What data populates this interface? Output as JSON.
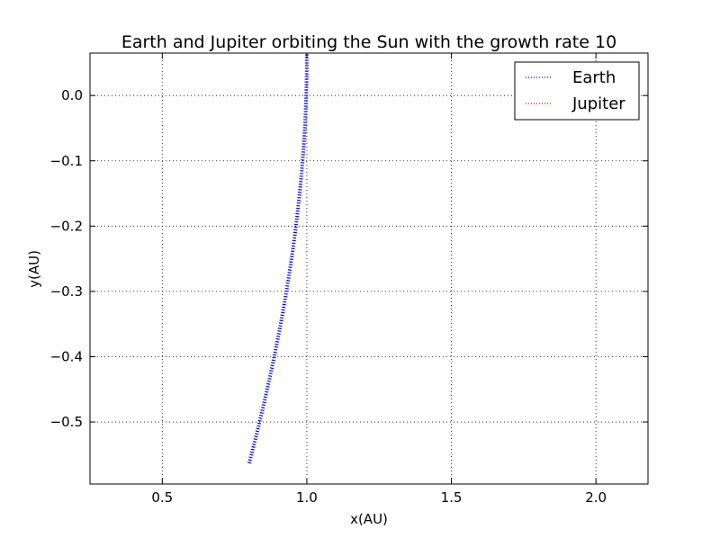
{
  "chart_data": {
    "type": "line",
    "title": "Earth and Jupiter orbiting the Sun with the growth rate 10",
    "xlabel": "x(AU)",
    "ylabel": "y(AU)",
    "xlim": [
      0.25,
      2.18
    ],
    "ylim": [
      -0.595,
      0.065
    ],
    "x_ticks": [
      0.5,
      1.0,
      1.5,
      2.0
    ],
    "x_tick_labels": [
      "0.5",
      "1.0",
      "1.5",
      "2.0"
    ],
    "y_ticks": [
      0.0,
      -0.1,
      -0.2,
      -0.3,
      -0.4,
      -0.5
    ],
    "y_tick_labels": [
      "0.0",
      "−0.1",
      "−0.2",
      "−0.3",
      "−0.4",
      "−0.5"
    ],
    "grid": true,
    "legend_position": "top-right",
    "series": [
      {
        "name": "Earth",
        "color": "#0000ff",
        "style": "dotted",
        "x": [
          1.0,
          0.9996,
          0.9982,
          0.996,
          0.9928,
          0.9888,
          0.9839,
          0.9781,
          0.9715,
          0.9641,
          0.9559,
          0.9468,
          0.937,
          0.9265,
          0.9152,
          0.9031,
          0.8903,
          0.8769,
          0.8628,
          0.848,
          0.8326,
          0.8166,
          0.8
        ],
        "y": [
          0.063,
          0.0345,
          0.006,
          -0.0225,
          -0.051,
          -0.0795,
          -0.108,
          -0.1365,
          -0.165,
          -0.1935,
          -0.222,
          -0.2505,
          -0.279,
          -0.3075,
          -0.336,
          -0.3645,
          -0.393,
          -0.4215,
          -0.45,
          -0.4785,
          -0.507,
          -0.5355,
          -0.5639
        ]
      },
      {
        "name": "Jupiter",
        "color": "#ff0000",
        "style": "dotted",
        "x": [],
        "y": []
      }
    ]
  }
}
